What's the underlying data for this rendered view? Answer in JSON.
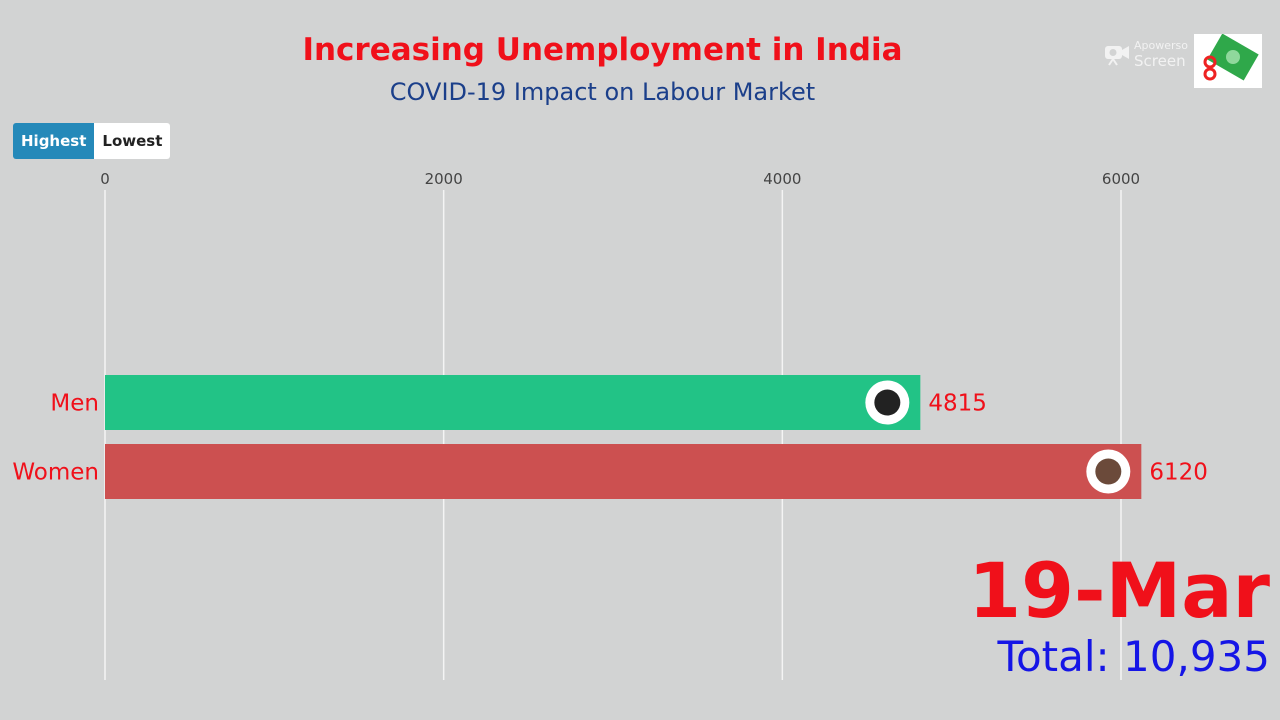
{
  "header": {
    "title": "Increasing Unemployment in India",
    "subtitle": "COVID-19 Impact on Labour Market"
  },
  "toggle": {
    "highest": "Highest",
    "lowest": "Lowest",
    "selected": "Highest"
  },
  "watermark": {
    "line1": "Apowerso",
    "line2": "Screen"
  },
  "date_label": "19-Mar",
  "total_label": "Total: 10,935",
  "colors": {
    "men": "#22c386",
    "women": "#cc5050",
    "label": "#f0101a",
    "toggle_active": "#2589b9"
  },
  "chart_data": {
    "type": "bar",
    "orientation": "horizontal",
    "categories": [
      "Men",
      "Women"
    ],
    "values": [
      4815,
      6120
    ],
    "value_labels": [
      "4815",
      "6120"
    ],
    "xticks": [
      0,
      2000,
      4000,
      6000
    ],
    "xtick_labels": [
      "0",
      "2000",
      "4000",
      "6000"
    ],
    "xlim": [
      0,
      6000
    ],
    "grid": true,
    "icons": [
      "man-avatar-icon",
      "woman-avatar-icon"
    ]
  }
}
